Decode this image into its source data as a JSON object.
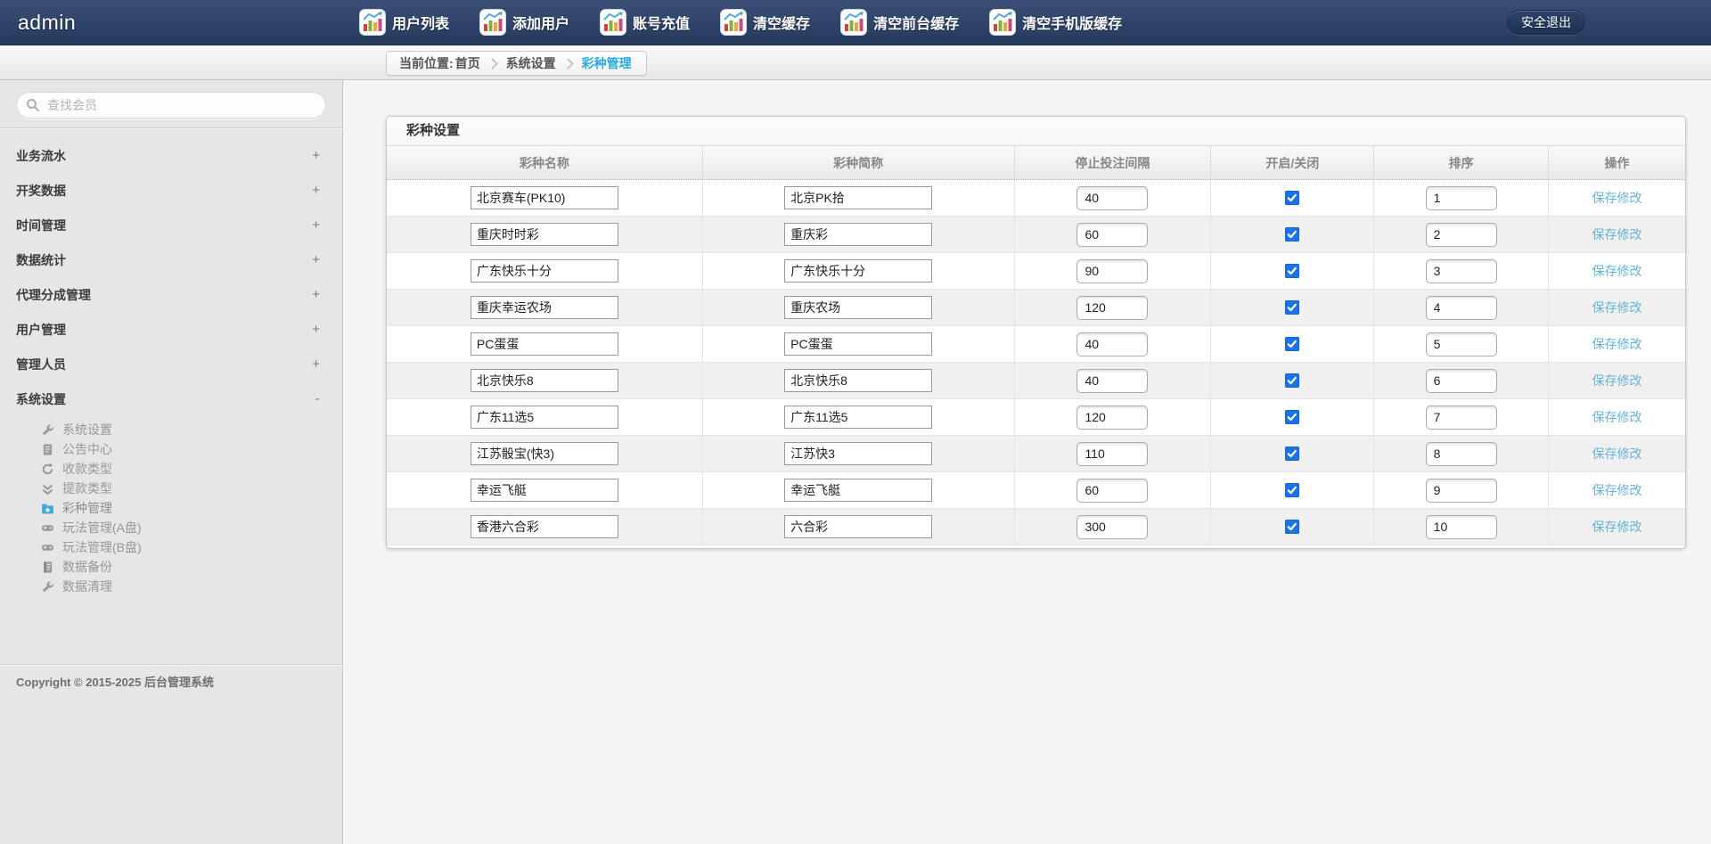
{
  "navbar": {
    "brand": "admin",
    "menu": [
      {
        "label": "用户列表"
      },
      {
        "label": "添加用户"
      },
      {
        "label": "账号充值"
      },
      {
        "label": "清空缓存"
      },
      {
        "label": "清空前台缓存"
      },
      {
        "label": "清空手机版缓存"
      }
    ],
    "logout_label": "安全退出"
  },
  "breadcrumb": {
    "prefix": "当前位置: ",
    "items": [
      {
        "label": "首页",
        "active": false
      },
      {
        "label": "系统设置",
        "active": false
      },
      {
        "label": "彩种管理",
        "active": true
      }
    ]
  },
  "sidebar": {
    "search_placeholder": "查找会员",
    "sections": [
      {
        "label": "业务流水",
        "state": "+"
      },
      {
        "label": "开奖数据",
        "state": "+"
      },
      {
        "label": "时间管理",
        "state": "+"
      },
      {
        "label": "数据统计",
        "state": "+"
      },
      {
        "label": "代理分成管理",
        "state": "+"
      },
      {
        "label": "用户管理",
        "state": "+"
      },
      {
        "label": "管理人员",
        "state": "+"
      },
      {
        "label": "系统设置",
        "state": "-",
        "children": [
          {
            "icon": "wrench",
            "label": "系统设置",
            "active": false
          },
          {
            "icon": "notice",
            "label": "公告中心",
            "active": false
          },
          {
            "icon": "refresh",
            "label": "收款类型",
            "active": false
          },
          {
            "icon": "withdraw",
            "label": "提款类型",
            "active": false
          },
          {
            "icon": "lottery",
            "label": "彩种管理",
            "active": true
          },
          {
            "icon": "gamepad",
            "label": "玩法管理(A盘)",
            "active": false
          },
          {
            "icon": "gamepad",
            "label": "玩法管理(B盘)",
            "active": false
          },
          {
            "icon": "backup",
            "label": "数据备份",
            "active": false
          },
          {
            "icon": "wrench",
            "label": "数据清理",
            "active": false
          }
        ]
      }
    ],
    "copyright": "Copyright © 2015-2025 后台管理系统"
  },
  "panel": {
    "title": "彩种设置",
    "columns": [
      "彩种名称",
      "彩种简称",
      "停止投注间隔",
      "开启/关闭",
      "排序",
      "操作"
    ],
    "action_label": "保存修改",
    "rows": [
      {
        "name": "北京赛车(PK10)",
        "short": "北京PK拾",
        "interval": "40",
        "enabled": true,
        "sort": "1"
      },
      {
        "name": "重庆时时彩",
        "short": "重庆彩",
        "interval": "60",
        "enabled": true,
        "sort": "2"
      },
      {
        "name": "广东快乐十分",
        "short": "广东快乐十分",
        "interval": "90",
        "enabled": true,
        "sort": "3"
      },
      {
        "name": "重庆幸运农场",
        "short": "重庆农场",
        "interval": "120",
        "enabled": true,
        "sort": "4"
      },
      {
        "name": "PC蛋蛋",
        "short": "PC蛋蛋",
        "interval": "40",
        "enabled": true,
        "sort": "5"
      },
      {
        "name": "北京快乐8",
        "short": "北京快乐8",
        "interval": "40",
        "enabled": true,
        "sort": "6"
      },
      {
        "name": "广东11选5",
        "short": "广东11选5",
        "interval": "120",
        "enabled": true,
        "sort": "7"
      },
      {
        "name": "江苏骰宝(快3)",
        "short": "江苏快3",
        "interval": "110",
        "enabled": true,
        "sort": "8"
      },
      {
        "name": "幸运飞艇",
        "short": "幸运飞艇",
        "interval": "60",
        "enabled": true,
        "sort": "9"
      },
      {
        "name": "香港六合彩",
        "short": "六合彩",
        "interval": "300",
        "enabled": true,
        "sort": "10"
      }
    ]
  },
  "colors": {
    "navbar_blue": "#2e4468",
    "breadcrumb_active": "#29aadc",
    "checkbox_blue": "#1a73e8",
    "link_blue": "#66b2d8",
    "lottery_icon_blue": "#3fa9dc"
  }
}
